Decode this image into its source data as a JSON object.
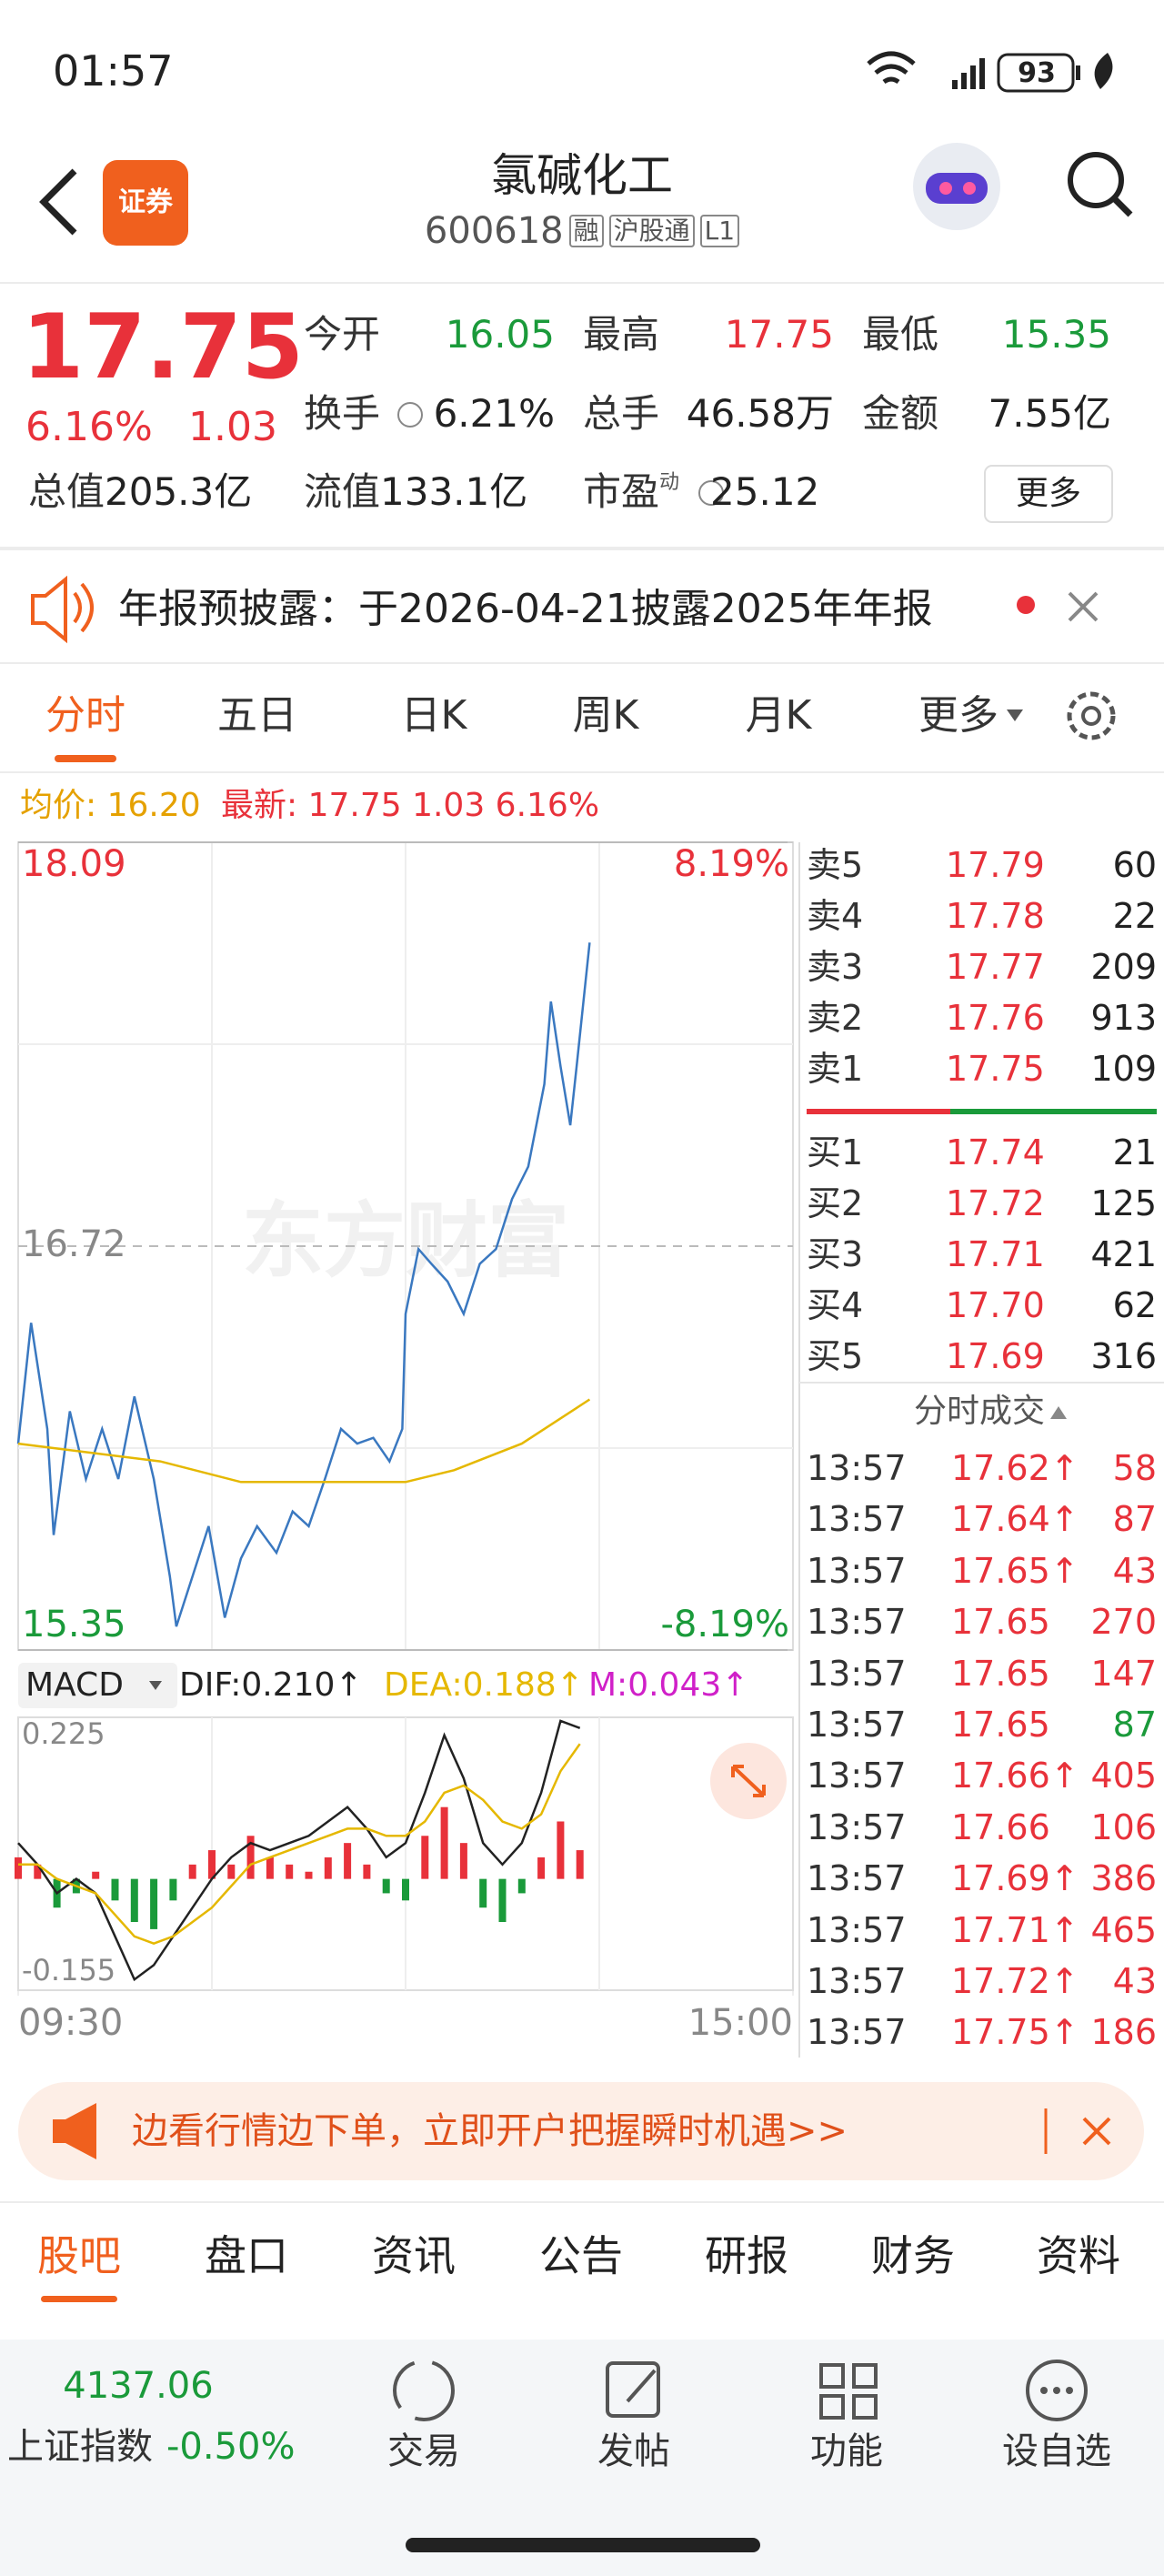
{
  "status_bar": {
    "time": "01:57",
    "battery": "93"
  },
  "header": {
    "logo": "证券",
    "title": "氯碱化工",
    "code": "600618",
    "badges": [
      "融",
      "沪股通",
      "L1"
    ]
  },
  "quote": {
    "price": "17.75",
    "change_pct": "6.16%",
    "change": "1.03",
    "rows": [
      [
        {
          "label": "今开",
          "value": "16.05",
          "color": "#1a9a3a"
        },
        {
          "label": "最高",
          "value": "17.75",
          "color": "#e8313a"
        },
        {
          "label": "最低",
          "value": "15.35",
          "color": "#1a9a3a"
        }
      ],
      [
        {
          "label": "换手",
          "value": "6.21%",
          "color": "#222222"
        },
        {
          "label": "总手",
          "value": "46.58万",
          "color": "#222222"
        },
        {
          "label": "金额",
          "value": "7.55亿",
          "color": "#222222"
        }
      ],
      [
        {
          "label": "总值",
          "value": "205.3亿"
        },
        {
          "label": "流值",
          "value": "133.1亿"
        },
        {
          "label": "市盈",
          "sup": "动",
          "value": "25.12"
        }
      ]
    ],
    "more": "更多"
  },
  "notice": {
    "text": "年报预披露：于2026-04-21披露2025年年报"
  },
  "chart_tabs": {
    "items": [
      "分时",
      "五日",
      "日K",
      "周K",
      "月K",
      "更多"
    ],
    "active": 0
  },
  "info": {
    "avg": "均价: 16.20",
    "latest": "最新: 17.75 1.03 6.16%"
  },
  "chart_data": [
    {
      "type": "line",
      "watermark": "东方财富",
      "x": [
        0,
        4,
        9,
        11,
        16,
        21,
        26,
        31,
        36,
        42,
        47,
        49,
        54,
        59,
        64,
        69,
        74,
        80,
        85,
        90,
        95,
        100,
        105,
        110,
        115,
        119,
        120,
        124,
        128,
        133,
        138,
        143,
        148,
        153,
        158,
        163,
        165,
        168,
        171,
        173,
        177
      ],
      "series": [
        {
          "color": "#3a78c0",
          "values": [
            16.05,
            16.46,
            16.1,
            15.74,
            16.16,
            15.93,
            16.1,
            15.93,
            16.21,
            15.93,
            15.6,
            15.43,
            15.6,
            15.77,
            15.46,
            15.66,
            15.77,
            15.68,
            15.82,
            15.77,
            15.93,
            16.1,
            16.05,
            16.07,
            15.99,
            16.1,
            16.49,
            16.71,
            16.66,
            16.6,
            16.49,
            16.66,
            16.71,
            16.88,
            16.99,
            17.27,
            17.55,
            17.33,
            17.13,
            17.33,
            17.75
          ]
        },
        {
          "color": "#e5b800",
          "x": [
            0,
            44,
            69,
            120,
            135,
            156,
            177
          ],
          "values": [
            16.05,
            15.99,
            15.92,
            15.92,
            15.96,
            16.05,
            16.2
          ]
        }
      ],
      "xlim": [
        0,
        240
      ],
      "ylim": [
        15.35,
        18.09
      ],
      "yticks": [
        18.09,
        16.72,
        15.35
      ],
      "ytick_colors": [
        "#e8313a",
        "#888888",
        "#1a9a3a"
      ],
      "y2lim": [
        -8.19,
        8.19
      ],
      "y2ticks": [
        {
          "value": 8.19,
          "label": "8.19%"
        },
        {
          "value": -8.19,
          "label": "-8.19%"
        }
      ],
      "y2tick_colors": [
        "#e8313a",
        "#1a9a3a"
      ]
    },
    {
      "type": "macd",
      "title": "MACD",
      "legend": [
        {
          "text": "DIF:0.210↑",
          "color": "#222222"
        },
        {
          "text": "DEA:0.188↑",
          "color": "#e5b800"
        },
        {
          "text": "M:0.043↑",
          "color": "#d020c8"
        }
      ],
      "x": [
        0,
        6,
        12,
        18,
        24,
        30,
        36,
        42,
        48,
        54,
        60,
        66,
        72,
        78,
        84,
        90,
        96,
        102,
        108,
        114,
        120,
        126,
        132,
        138,
        144,
        150,
        156,
        162,
        168,
        174
      ],
      "bars": {
        "up_color": "#e8313a",
        "down_color": "#1a9a3a",
        "values": [
          0.03,
          0.02,
          -0.04,
          -0.02,
          0.01,
          -0.03,
          -0.06,
          -0.07,
          -0.03,
          0.02,
          0.04,
          0.02,
          0.06,
          0.03,
          0.02,
          0.01,
          0.03,
          0.05,
          0.02,
          -0.02,
          -0.03,
          0.06,
          0.1,
          0.05,
          -0.04,
          -0.06,
          -0.02,
          0.03,
          0.08,
          0.04
        ]
      },
      "dif": {
        "color": "#222222",
        "values": [
          0.05,
          0.02,
          -0.02,
          0.0,
          -0.02,
          -0.08,
          -0.14,
          -0.12,
          -0.08,
          -0.04,
          0.0,
          0.03,
          0.05,
          0.04,
          0.05,
          0.06,
          0.08,
          0.1,
          0.07,
          0.03,
          0.05,
          0.12,
          0.2,
          0.14,
          0.05,
          0.02,
          0.05,
          0.12,
          0.22,
          0.21
        ]
      },
      "dea": {
        "color": "#e5b800",
        "values": [
          0.02,
          0.02,
          0.0,
          -0.01,
          -0.02,
          -0.05,
          -0.08,
          -0.09,
          -0.08,
          -0.06,
          -0.04,
          -0.01,
          0.02,
          0.03,
          0.04,
          0.05,
          0.06,
          0.07,
          0.07,
          0.06,
          0.06,
          0.08,
          0.12,
          0.13,
          0.11,
          0.08,
          0.07,
          0.09,
          0.15,
          0.188
        ]
      },
      "xlim": [
        0,
        240
      ],
      "ylim": [
        -0.155,
        0.225
      ],
      "yticks": [
        0.225,
        -0.155
      ],
      "xticks": [
        {
          "value": 0,
          "label": "09:30"
        },
        {
          "value": 240,
          "label": "15:00"
        }
      ]
    }
  ],
  "order_book": {
    "sell": [
      {
        "label": "卖5",
        "price": "17.79",
        "volume": "60"
      },
      {
        "label": "卖4",
        "price": "17.78",
        "volume": "22"
      },
      {
        "label": "卖3",
        "price": "17.77",
        "volume": "209"
      },
      {
        "label": "卖2",
        "price": "17.76",
        "volume": "913"
      },
      {
        "label": "卖1",
        "price": "17.75",
        "volume": "109"
      }
    ],
    "buy": [
      {
        "label": "买1",
        "price": "17.74",
        "volume": "21"
      },
      {
        "label": "买2",
        "price": "17.72",
        "volume": "125"
      },
      {
        "label": "买3",
        "price": "17.71",
        "volume": "421"
      },
      {
        "label": "买4",
        "price": "17.70",
        "volume": "62"
      },
      {
        "label": "买5",
        "price": "17.69",
        "volume": "316"
      }
    ]
  },
  "trades": {
    "title": "分时成交",
    "rows": [
      {
        "time": "13:57",
        "price": "17.62↑",
        "volume": "58"
      },
      {
        "time": "13:57",
        "price": "17.64↑",
        "volume": "87"
      },
      {
        "time": "13:57",
        "price": "17.65↑",
        "volume": "43"
      },
      {
        "time": "13:57",
        "price": "17.65",
        "volume": "270"
      },
      {
        "time": "13:57",
        "price": "17.65",
        "volume": "147"
      },
      {
        "time": "13:57",
        "price": "17.65",
        "volume": "87",
        "color": "#1a9a3a"
      },
      {
        "time": "13:57",
        "price": "17.66↑",
        "volume": "405"
      },
      {
        "time": "13:57",
        "price": "17.66",
        "volume": "106"
      },
      {
        "time": "13:57",
        "price": "17.69↑",
        "volume": "386"
      },
      {
        "time": "13:57",
        "price": "17.71↑",
        "volume": "465"
      },
      {
        "time": "13:57",
        "price": "17.72↑",
        "volume": "43"
      },
      {
        "time": "13:57",
        "price": "17.75↑",
        "volume": "186"
      }
    ]
  },
  "ad": {
    "text": "边看行情边下单，立即开户把握瞬时机遇>>"
  },
  "bottom_tabs": {
    "items": [
      "股吧",
      "盘口",
      "资讯",
      "公告",
      "研报",
      "财务",
      "资料"
    ],
    "active": 0
  },
  "footer": {
    "index_value": "4137.06",
    "index_name": "上证指数",
    "index_change": "-0.50%",
    "nav": [
      "交易",
      "发帖",
      "功能",
      "设自选"
    ]
  }
}
